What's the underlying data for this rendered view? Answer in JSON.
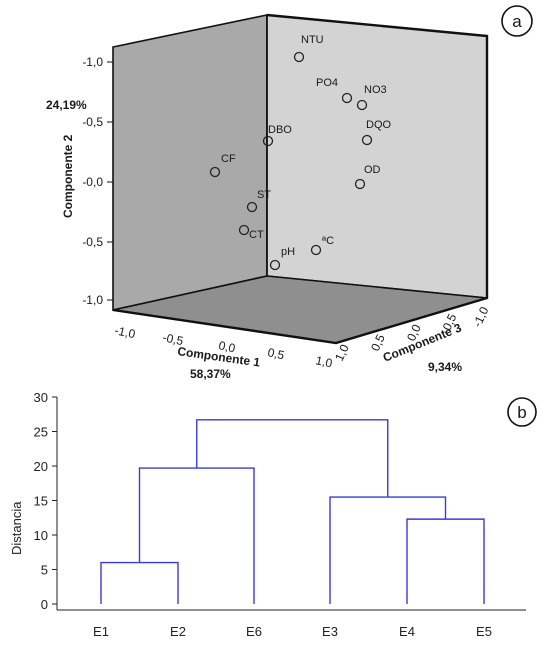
{
  "chart_data": [
    {
      "type": "scatter",
      "panel": "a",
      "axes": {
        "x": {
          "label": "Componente 1",
          "variance": "58,37%",
          "ticks": [
            "-1,0",
            "-0,5",
            "0,0",
            "0,5",
            "1,0"
          ]
        },
        "y": {
          "label": "Componente 2",
          "variance": "24,19%",
          "ticks": [
            "-1,0",
            "-0,5",
            "-0,0",
            "-0,5",
            "-1,0"
          ]
        },
        "z": {
          "label": "Componente 3",
          "variance": "9,34%",
          "ticks": [
            "1,0",
            "0,5",
            "0,0",
            "-0,5",
            "-1,0"
          ]
        }
      },
      "points": [
        {
          "label": "NTU",
          "x": 0.45,
          "y": 0.84,
          "z": 0.1
        },
        {
          "label": "PO4",
          "x": 0.65,
          "y": 0.75,
          "z": -0.05
        },
        {
          "label": "NO3",
          "x": 0.75,
          "y": 0.68,
          "z": -0.15
        },
        {
          "label": "DQO",
          "x": 0.8,
          "y": 0.45,
          "z": -0.2
        },
        {
          "label": "OD",
          "x": 0.7,
          "y": 0.05,
          "z": -0.25
        },
        {
          "label": "DBO",
          "x": 0.1,
          "y": 0.45,
          "z": 0.15
        },
        {
          "label": "CF",
          "x": -0.45,
          "y": 0.2,
          "z": 0.3
        },
        {
          "label": "ST",
          "x": -0.05,
          "y": -0.15,
          "z": 0.4
        },
        {
          "label": "CT",
          "x": -0.1,
          "y": -0.35,
          "z": 0.45
        },
        {
          "label": "ªC",
          "x": 0.55,
          "y": -0.55,
          "z": 0.0
        },
        {
          "label": "pH",
          "x": 0.25,
          "y": -0.65,
          "z": 0.2
        }
      ]
    },
    {
      "type": "dendrogram",
      "panel": "b",
      "ylabel": "Distancia",
      "ylim": [
        0,
        30
      ],
      "yticks": [
        0,
        5,
        10,
        15,
        20,
        25,
        30
      ],
      "leaves": [
        "E1",
        "E2",
        "E6",
        "E3",
        "E4",
        "E5"
      ],
      "merges": [
        {
          "a": "E1",
          "b": "E2",
          "height": 6
        },
        {
          "a": "E4",
          "b": "E5",
          "height": 12.3
        },
        {
          "a": "E3",
          "b": "E4+E5",
          "height": 15.5
        },
        {
          "a": "E1+E2",
          "b": "E6",
          "height": 19.7
        },
        {
          "a": "E1+E2+E6",
          "b": "E3+E4+E5",
          "height": 26.7
        }
      ],
      "line_color": "#3a3ad6"
    }
  ],
  "panel_labels": {
    "a": "a",
    "b": "b"
  },
  "pca": {
    "y_variance": "24,19%",
    "y_title": "Componente 2",
    "x_title": "Componente 1",
    "x_variance": "58,37%",
    "z_title": "Componente 3",
    "z_variance": "9,34%",
    "y_ticks": [
      "-1,0",
      "-0,5",
      "-0,0",
      "-0,5",
      "-1,0"
    ],
    "x_ticks": [
      "-1,0",
      "-0,5",
      "0,0",
      "0,5",
      "1,0"
    ],
    "z_ticks": [
      "1,0",
      "0,5",
      "0,0",
      "-0,5",
      "-1,0"
    ]
  },
  "dendro": {
    "ylabel": "Distancia",
    "yticks": [
      "30",
      "25",
      "20",
      "15",
      "10",
      "5",
      "0"
    ],
    "leaves": [
      "E1",
      "E2",
      "E6",
      "E3",
      "E4",
      "E5"
    ]
  }
}
